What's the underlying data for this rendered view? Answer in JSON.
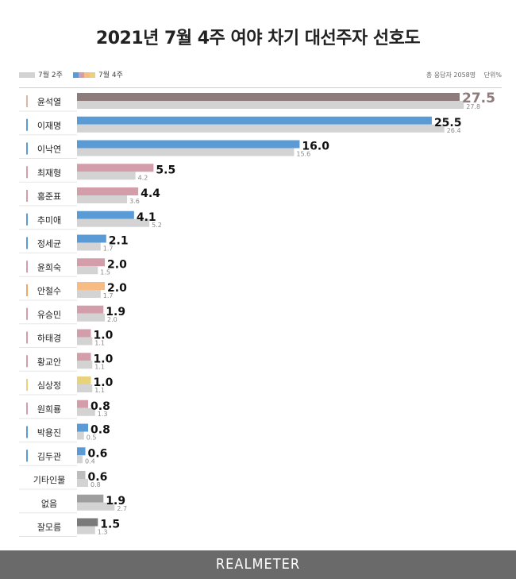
{
  "header": {
    "title": "2021년 7월 4주 여야 차기 대선주자 선호도",
    "respondents": "총 응답자 2058명",
    "unit": "단위%"
  },
  "legend": {
    "previous_label": "7월 2주",
    "current_label": "7월 4주"
  },
  "footer": {
    "brand": "REALMETER"
  },
  "colors": {
    "previous": "#d3d3d3",
    "yoon": "#8e7b7b",
    "democratic": "#5b9bd5",
    "opposition": "#d39ea9",
    "independent": "#f6bc83",
    "justice": "#e8d37c",
    "other": "#bdbdbd",
    "none": "#9e9e9e",
    "dontknow": "#7a7a7a"
  },
  "chart_data": {
    "type": "bar",
    "orientation": "horizontal",
    "title": "2021년 7월 4주 여야 차기 대선주자 선호도",
    "unit": "%",
    "xlim": [
      0,
      27.5
    ],
    "legend_position": "top-left",
    "categories": [
      "윤석열",
      "이재명",
      "이낙연",
      "최재형",
      "홍준표",
      "추미애",
      "정세균",
      "윤희숙",
      "안철수",
      "유승민",
      "하태경",
      "황교안",
      "심상정",
      "원희룡",
      "박용진",
      "김두관",
      "기타인물",
      "없음",
      "잘모름"
    ],
    "series": [
      {
        "name": "7월 4주",
        "values": [
          27.5,
          25.5,
          16.0,
          5.5,
          4.4,
          4.1,
          2.1,
          2.0,
          2.0,
          1.9,
          1.0,
          1.0,
          1.0,
          0.8,
          0.8,
          0.6,
          0.6,
          1.9,
          1.5
        ],
        "labels": [
          "27.5",
          "25.5",
          "16.0",
          "5.5",
          "4.4",
          "4.1",
          "2.1",
          "2.0",
          "2.0",
          "1.9",
          "1.0",
          "1.0",
          "1.0",
          "0.8",
          "0.8",
          "0.6",
          "0.6",
          "1.9",
          "1.5"
        ],
        "colors": [
          "#8e7b7b",
          "#5b9bd5",
          "#5b9bd5",
          "#d39ea9",
          "#d39ea9",
          "#5b9bd5",
          "#5b9bd5",
          "#d39ea9",
          "#f6bc83",
          "#d39ea9",
          "#d39ea9",
          "#d39ea9",
          "#e8d37c",
          "#d39ea9",
          "#5b9bd5",
          "#5b9bd5",
          "#bdbdbd",
          "#9e9e9e",
          "#7a7a7a"
        ]
      },
      {
        "name": "7월 2주",
        "values": [
          27.8,
          26.4,
          15.6,
          4.2,
          3.6,
          5.2,
          1.7,
          1.5,
          1.7,
          2.0,
          1.1,
          1.1,
          1.1,
          1.3,
          0.5,
          0.4,
          0.8,
          2.7,
          1.3
        ],
        "labels": [
          "27.8",
          "26.4",
          "15.6",
          "4.2",
          "3.6",
          "5.2",
          "1.7",
          "1.5",
          "1.7",
          "2.0",
          "1.1",
          "1.1",
          "1.1",
          "1.3",
          "0.5",
          "0.4",
          "0.8",
          "2.7",
          "1.3"
        ]
      }
    ],
    "tag_colors": [
      "#d9b9a3",
      "#5b9bd5",
      "#5b9bd5",
      "#d39ea9",
      "#d39ea9",
      "#5b9bd5",
      "#5b9bd5",
      "#d39ea9",
      "#f0a868",
      "#d39ea9",
      "#d39ea9",
      "#d39ea9",
      "#e8d37c",
      "#d39ea9",
      "#5b9bd5",
      "#5b9bd5",
      null,
      null,
      null
    ]
  }
}
